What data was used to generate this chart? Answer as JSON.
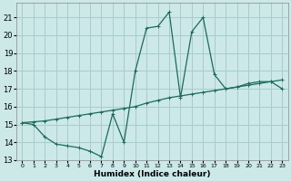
{
  "xlabel": "Humidex (Indice chaleur)",
  "ylabel": "",
  "xlim": [
    -0.5,
    23.5
  ],
  "ylim": [
    13,
    21.8
  ],
  "yticks": [
    13,
    14,
    15,
    16,
    17,
    18,
    19,
    20,
    21
  ],
  "xticks": [
    0,
    1,
    2,
    3,
    4,
    5,
    6,
    7,
    8,
    9,
    10,
    11,
    12,
    13,
    14,
    15,
    16,
    17,
    18,
    19,
    20,
    21,
    22,
    23
  ],
  "bg_color": "#cce8e8",
  "grid_color": "#aacccc",
  "line_color": "#1a6b5a",
  "line1_x": [
    0,
    1,
    2,
    3,
    4,
    5,
    6,
    7,
    8,
    9,
    10,
    11,
    12,
    13,
    14,
    15,
    16,
    17,
    18,
    19,
    20,
    21,
    22,
    23
  ],
  "line1_y": [
    15.1,
    15.0,
    14.3,
    13.9,
    13.8,
    13.7,
    13.5,
    13.2,
    15.6,
    14.0,
    18.0,
    20.4,
    20.5,
    21.3,
    16.5,
    20.2,
    21.0,
    17.8,
    17.0,
    17.1,
    17.3,
    17.4,
    17.4,
    17.0
  ],
  "line2_x": [
    0,
    1,
    2,
    3,
    4,
    5,
    6,
    7,
    8,
    9,
    10,
    11,
    12,
    13,
    14,
    15,
    16,
    17,
    18,
    19,
    20,
    21,
    22,
    23
  ],
  "line2_y": [
    15.1,
    15.15,
    15.2,
    15.3,
    15.4,
    15.5,
    15.6,
    15.7,
    15.8,
    15.9,
    16.0,
    16.2,
    16.35,
    16.5,
    16.6,
    16.7,
    16.8,
    16.9,
    17.0,
    17.1,
    17.2,
    17.3,
    17.4,
    17.5
  ]
}
